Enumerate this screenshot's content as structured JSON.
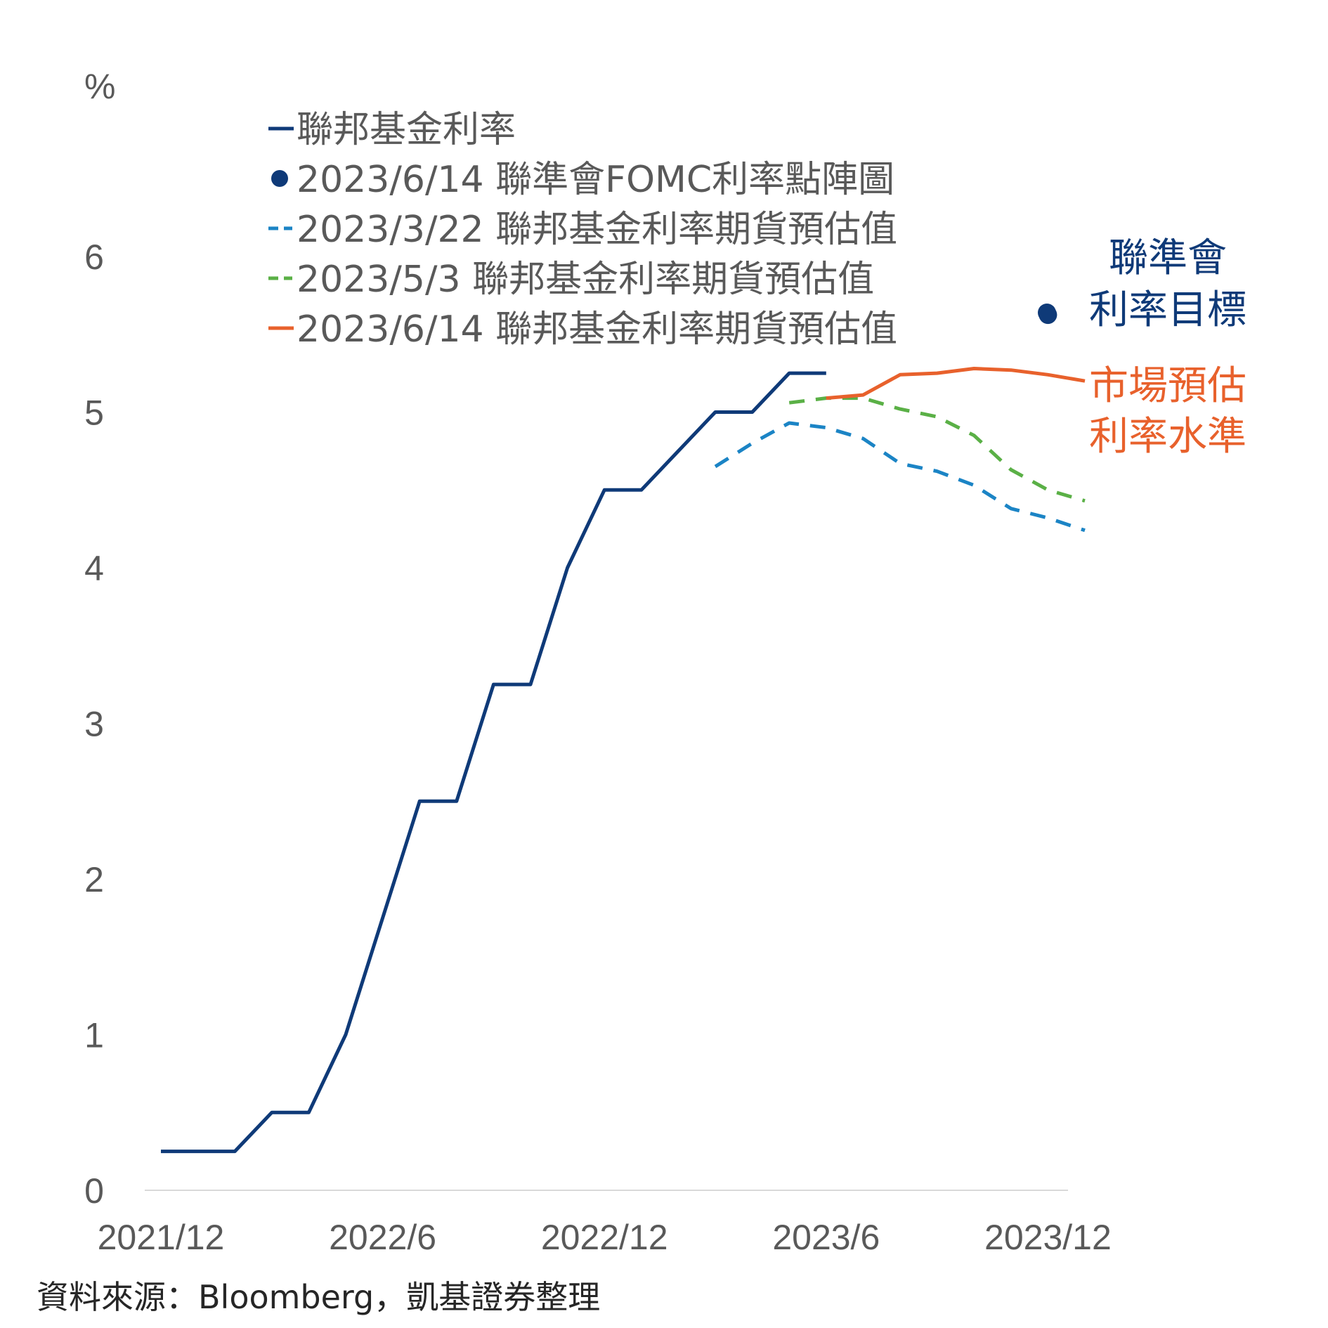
{
  "chart_data": {
    "type": "line",
    "ylabel": "%",
    "ylim": [
      0,
      6.5
    ],
    "xlim": [
      "2021-12",
      "2024-01"
    ],
    "y_ticks": [
      "0",
      "1",
      "2",
      "3",
      "4",
      "5",
      "6"
    ],
    "x_ticks": [
      {
        "label": "2021/12",
        "x": "2021-12"
      },
      {
        "label": "2022/6",
        "x": "2022-06"
      },
      {
        "label": "2022/12",
        "x": "2022-12"
      },
      {
        "label": "2023/6",
        "x": "2023-06"
      },
      {
        "label": "2023/12",
        "x": "2023-12"
      }
    ],
    "grid": false,
    "legend_position": "top-left",
    "series": [
      {
        "name": "聯邦基金利率",
        "style": "solid",
        "color": "#0f3a78",
        "points": [
          [
            "2021-12",
            0.25
          ],
          [
            "2022-01",
            0.25
          ],
          [
            "2022-02",
            0.25
          ],
          [
            "2022-03",
            0.5
          ],
          [
            "2022-04",
            0.5
          ],
          [
            "2022-05",
            1.0
          ],
          [
            "2022-06",
            1.75
          ],
          [
            "2022-07",
            2.5
          ],
          [
            "2022-08",
            2.5
          ],
          [
            "2022-09",
            3.25
          ],
          [
            "2022-10",
            3.25
          ],
          [
            "2022-11",
            4.0
          ],
          [
            "2022-12",
            4.5
          ],
          [
            "2023-01",
            4.5
          ],
          [
            "2023-02",
            4.75
          ],
          [
            "2023-03",
            5.0
          ],
          [
            "2023-04",
            5.0
          ],
          [
            "2023-05",
            5.25
          ],
          [
            "2023-06",
            5.25
          ]
        ]
      },
      {
        "name": "2023/6/14 聯準會FOMC利率點陣圖",
        "style": "marker",
        "color": "#0f3a78",
        "points": [
          [
            "2023-12",
            5.625
          ]
        ]
      },
      {
        "name": "2023/3/22 聯邦基金利率期貨預估值",
        "style": "dashed",
        "color": "#1b84c5",
        "points": [
          [
            "2023-03",
            4.65
          ],
          [
            "2023-04",
            4.8
          ],
          [
            "2023-05",
            4.93
          ],
          [
            "2023-06",
            4.9
          ],
          [
            "2023-07",
            4.83
          ],
          [
            "2023-08",
            4.67
          ],
          [
            "2023-09",
            4.62
          ],
          [
            "2023-10",
            4.53
          ],
          [
            "2023-11",
            4.38
          ],
          [
            "2023-12",
            4.32
          ],
          [
            "2024-01",
            4.24
          ]
        ]
      },
      {
        "name": "2023/5/3 聯邦基金利率期貨預估值",
        "style": "dashed",
        "color": "#5ab046",
        "points": [
          [
            "2023-05",
            5.06
          ],
          [
            "2023-06",
            5.09
          ],
          [
            "2023-07",
            5.09
          ],
          [
            "2023-08",
            5.02
          ],
          [
            "2023-09",
            4.97
          ],
          [
            "2023-10",
            4.85
          ],
          [
            "2023-11",
            4.63
          ],
          [
            "2023-12",
            4.5
          ],
          [
            "2024-01",
            4.43
          ]
        ]
      },
      {
        "name": "2023/6/14 聯邦基金利率期貨預估值",
        "style": "solid",
        "color": "#e8612c",
        "points": [
          [
            "2023-06",
            5.09
          ],
          [
            "2023-07",
            5.11
          ],
          [
            "2023-08",
            5.24
          ],
          [
            "2023-09",
            5.25
          ],
          [
            "2023-10",
            5.28
          ],
          [
            "2023-11",
            5.27
          ],
          [
            "2023-12",
            5.24
          ],
          [
            "2024-01",
            5.2
          ]
        ]
      }
    ],
    "annotations": [
      {
        "text": [
          "聯準會",
          "利率目標"
        ],
        "color": "#0f3a78"
      },
      {
        "text": [
          "市場預估",
          "利率水準"
        ],
        "color": "#e8612c"
      }
    ]
  },
  "source": "資料來源：Bloomberg，凱基證券整理"
}
